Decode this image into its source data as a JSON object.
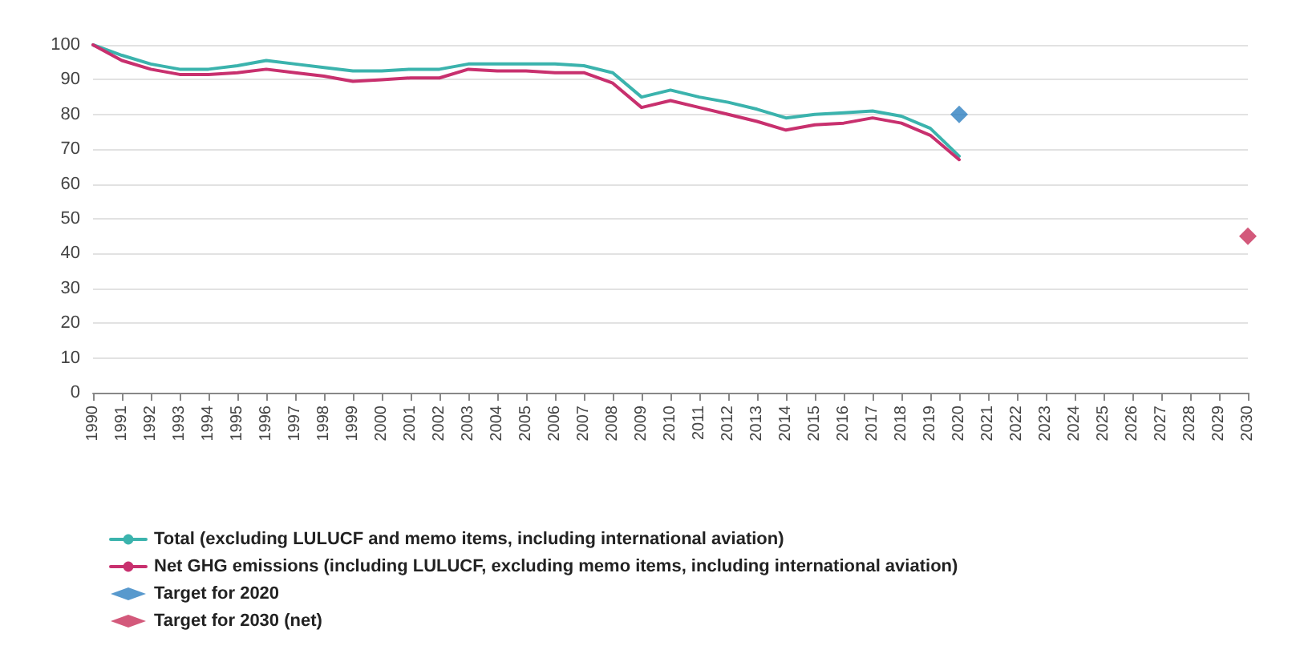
{
  "chart_data": {
    "type": "line",
    "categories": [
      "1990",
      "1991",
      "1992",
      "1993",
      "1994",
      "1995",
      "1996",
      "1997",
      "1998",
      "1999",
      "2000",
      "2001",
      "2002",
      "2003",
      "2004",
      "2005",
      "2006",
      "2007",
      "2008",
      "2009",
      "2010",
      "2011",
      "2012",
      "2013",
      "2014",
      "2015",
      "2016",
      "2017",
      "2018",
      "2019",
      "2020",
      "2021",
      "2022",
      "2023",
      "2024",
      "2025",
      "2026",
      "2027",
      "2028",
      "2029",
      "2030"
    ],
    "series": [
      {
        "name": "Total (excluding LULUCF and memo items, including international aviation)",
        "color": "#3bb3ad",
        "values": [
          100,
          97,
          94.5,
          93,
          93,
          94,
          95.5,
          94.5,
          93.5,
          92.5,
          92.5,
          93,
          93,
          94.5,
          94.5,
          94.5,
          94.5,
          94,
          92,
          85,
          87,
          85,
          83.5,
          81.5,
          79,
          80,
          80.5,
          81,
          79.5,
          76,
          68,
          null,
          null,
          null,
          null,
          null,
          null,
          null,
          null,
          null,
          null
        ]
      },
      {
        "name": "Net GHG emissions (including LULUCF, excluding memo items, including international aviation)",
        "color": "#c8306e",
        "values": [
          100,
          95.5,
          93,
          91.5,
          91.5,
          92,
          93,
          92,
          91,
          89.5,
          90,
          90.5,
          90.5,
          93,
          92.5,
          92.5,
          92,
          92,
          89,
          82,
          84,
          82,
          80,
          78,
          75.5,
          77,
          77.5,
          79,
          77.5,
          74,
          67,
          null,
          null,
          null,
          null,
          null,
          null,
          null,
          null,
          null,
          null
        ]
      },
      {
        "name": "Target for 2020",
        "type": "scatter",
        "marker": "diamond",
        "color": "#2e7fc0",
        "values": [
          null,
          null,
          null,
          null,
          null,
          null,
          null,
          null,
          null,
          null,
          null,
          null,
          null,
          null,
          null,
          null,
          null,
          null,
          null,
          null,
          null,
          null,
          null,
          null,
          null,
          null,
          null,
          null,
          null,
          null,
          80,
          null,
          null,
          null,
          null,
          null,
          null,
          null,
          null,
          null,
          null
        ]
      },
      {
        "name": "Target for 2030 (net)",
        "type": "scatter",
        "marker": "diamond",
        "color": "#c8305a",
        "values": [
          null,
          null,
          null,
          null,
          null,
          null,
          null,
          null,
          null,
          null,
          null,
          null,
          null,
          null,
          null,
          null,
          null,
          null,
          null,
          null,
          null,
          null,
          null,
          null,
          null,
          null,
          null,
          null,
          null,
          null,
          null,
          null,
          null,
          null,
          null,
          null,
          null,
          null,
          null,
          null,
          45
        ]
      }
    ],
    "ylim": [
      0,
      100
    ],
    "yticks": [
      0,
      10,
      20,
      30,
      40,
      50,
      60,
      70,
      80,
      90,
      100
    ],
    "grid": "y",
    "legend": "bottom left"
  }
}
